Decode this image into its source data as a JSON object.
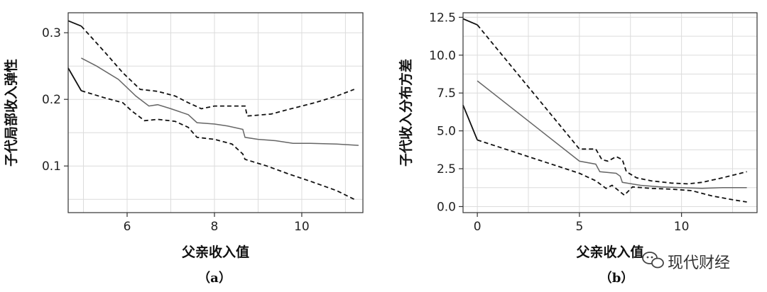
{
  "chart_data": [
    {
      "type": "line",
      "panel_label": "（a）",
      "xlabel": "父亲收入值",
      "ylabel": "子代局部收入弹性",
      "xlim": [
        4.65,
        11.4
      ],
      "ylim": [
        0.03,
        0.33
      ],
      "xticks": [
        6,
        8,
        10
      ],
      "yticks": [
        0.1,
        0.2,
        0.3
      ],
      "grid": true,
      "series": [
        {
          "style": "solid-gray",
          "points": [
            [
              4.95,
              0.262
            ],
            [
              5.3,
              0.25
            ],
            [
              5.8,
              0.23
            ],
            [
              6.2,
              0.205
            ],
            [
              6.5,
              0.19
            ],
            [
              6.7,
              0.192
            ],
            [
              7.0,
              0.186
            ],
            [
              7.4,
              0.177
            ],
            [
              7.6,
              0.165
            ],
            [
              8.0,
              0.163
            ],
            [
              8.3,
              0.16
            ],
            [
              8.65,
              0.155
            ],
            [
              8.7,
              0.143
            ],
            [
              9.0,
              0.14
            ],
            [
              9.4,
              0.138
            ],
            [
              9.8,
              0.134
            ],
            [
              10.2,
              0.134
            ],
            [
              10.8,
              0.133
            ],
            [
              11.3,
              0.131
            ]
          ]
        },
        {
          "style": "dashed",
          "points": [
            [
              4.95,
              0.31
            ],
            [
              5.5,
              0.27
            ],
            [
              5.9,
              0.24
            ],
            [
              6.3,
              0.215
            ],
            [
              6.7,
              0.212
            ],
            [
              7.1,
              0.205
            ],
            [
              7.4,
              0.195
            ],
            [
              7.7,
              0.186
            ],
            [
              8.0,
              0.19
            ],
            [
              8.4,
              0.19
            ],
            [
              8.7,
              0.19
            ],
            [
              8.75,
              0.175
            ],
            [
              9.3,
              0.178
            ],
            [
              9.7,
              0.185
            ],
            [
              10.3,
              0.195
            ],
            [
              10.8,
              0.205
            ],
            [
              11.2,
              0.215
            ]
          ]
        },
        {
          "style": "dashed",
          "points": [
            [
              4.95,
              0.213
            ],
            [
              5.5,
              0.202
            ],
            [
              5.9,
              0.195
            ],
            [
              6.1,
              0.183
            ],
            [
              6.4,
              0.168
            ],
            [
              6.7,
              0.17
            ],
            [
              7.1,
              0.167
            ],
            [
              7.4,
              0.158
            ],
            [
              7.6,
              0.143
            ],
            [
              8.0,
              0.14
            ],
            [
              8.4,
              0.133
            ],
            [
              8.65,
              0.118
            ],
            [
              8.7,
              0.11
            ],
            [
              9.2,
              0.1
            ],
            [
              9.7,
              0.088
            ],
            [
              10.2,
              0.077
            ],
            [
              10.8,
              0.063
            ],
            [
              11.2,
              0.05
            ]
          ]
        },
        {
          "style": "solid-black",
          "points": [
            [
              4.65,
              0.318
            ],
            [
              4.95,
              0.31
            ]
          ]
        },
        {
          "style": "solid-black",
          "points": [
            [
              4.65,
              0.247
            ],
            [
              4.95,
              0.213
            ]
          ]
        }
      ]
    },
    {
      "type": "line",
      "panel_label": "（b）",
      "xlabel": "父亲收入值",
      "ylabel": "子代收入分布方差",
      "xlim": [
        -0.7,
        13.7
      ],
      "ylim": [
        -0.4,
        12.8
      ],
      "xticks": [
        0,
        5,
        10
      ],
      "yticks": [
        0.0,
        2.5,
        5.0,
        7.5,
        10.0,
        12.5
      ],
      "ytick_labels": [
        "0.0",
        "2.5",
        "5.0",
        "7.5",
        "10.0",
        "12.5"
      ],
      "grid": true,
      "series": [
        {
          "style": "solid-gray",
          "points": [
            [
              0.0,
              8.3
            ],
            [
              5.0,
              3.0
            ],
            [
              5.8,
              2.8
            ],
            [
              6.0,
              2.3
            ],
            [
              6.8,
              2.2
            ],
            [
              7.0,
              2.0
            ],
            [
              7.1,
              1.6
            ],
            [
              8.0,
              1.4
            ],
            [
              9.0,
              1.3
            ],
            [
              10.0,
              1.25
            ],
            [
              11.0,
              1.2
            ],
            [
              12.0,
              1.25
            ],
            [
              13.2,
              1.25
            ]
          ]
        },
        {
          "style": "dashed",
          "points": [
            [
              0.0,
              12.0
            ],
            [
              5.0,
              3.8
            ],
            [
              5.8,
              3.8
            ],
            [
              6.1,
              3.1
            ],
            [
              6.4,
              3.0
            ],
            [
              6.8,
              3.3
            ],
            [
              7.1,
              3.1
            ],
            [
              7.3,
              2.3
            ],
            [
              7.8,
              1.9
            ],
            [
              8.5,
              1.7
            ],
            [
              9.5,
              1.55
            ],
            [
              10.3,
              1.5
            ],
            [
              11.0,
              1.6
            ],
            [
              12.0,
              1.9
            ],
            [
              13.2,
              2.3
            ]
          ]
        },
        {
          "style": "dashed",
          "points": [
            [
              0.0,
              4.4
            ],
            [
              5.0,
              2.2
            ],
            [
              5.8,
              1.7
            ],
            [
              6.3,
              1.2
            ],
            [
              6.6,
              1.4
            ],
            [
              7.2,
              0.75
            ],
            [
              7.6,
              1.3
            ],
            [
              8.5,
              1.2
            ],
            [
              9.5,
              1.15
            ],
            [
              10.5,
              1.05
            ],
            [
              11.5,
              0.7
            ],
            [
              12.5,
              0.45
            ],
            [
              13.2,
              0.3
            ]
          ]
        },
        {
          "style": "solid-black",
          "points": [
            [
              -0.7,
              12.4
            ],
            [
              0.0,
              12.0
            ]
          ]
        },
        {
          "style": "solid-black",
          "points": [
            [
              -0.7,
              6.7
            ],
            [
              0.0,
              4.4
            ]
          ]
        }
      ]
    }
  ],
  "watermark": {
    "icon": "wechat-icon",
    "text": "现代财经"
  }
}
